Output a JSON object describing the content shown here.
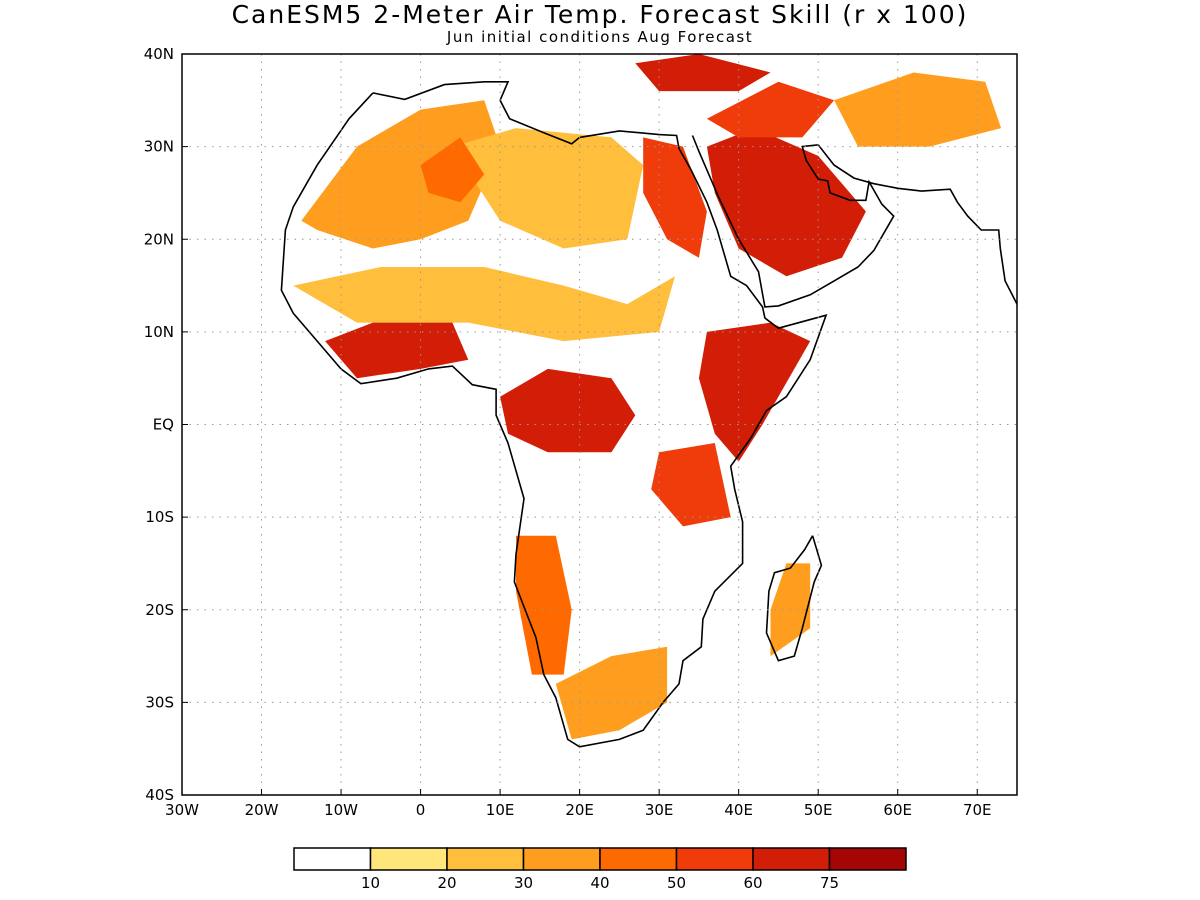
{
  "title": "CanESM5 2-Meter Air Temp. Forecast Skill (r x 100)",
  "subtitle": "Jun initial conditions  Aug Forecast",
  "map": {
    "lon_range": [
      -30,
      75
    ],
    "lat_range": [
      -40,
      40
    ],
    "lon_ticks": [
      {
        "value": -30,
        "label": "30W"
      },
      {
        "value": -20,
        "label": "20W"
      },
      {
        "value": -10,
        "label": "10W"
      },
      {
        "value": 0,
        "label": "0"
      },
      {
        "value": 10,
        "label": "10E"
      },
      {
        "value": 20,
        "label": "20E"
      },
      {
        "value": 30,
        "label": "30E"
      },
      {
        "value": 40,
        "label": "40E"
      },
      {
        "value": 50,
        "label": "50E"
      },
      {
        "value": 60,
        "label": "60E"
      },
      {
        "value": 70,
        "label": "70E"
      }
    ],
    "lat_ticks": [
      {
        "value": 40,
        "label": "40N"
      },
      {
        "value": 30,
        "label": "30N"
      },
      {
        "value": 20,
        "label": "20N"
      },
      {
        "value": 10,
        "label": "10N"
      },
      {
        "value": 0,
        "label": "EQ"
      },
      {
        "value": -10,
        "label": "10S"
      },
      {
        "value": -20,
        "label": "20S"
      },
      {
        "value": -30,
        "label": "30S"
      },
      {
        "value": -40,
        "label": "40S"
      }
    ],
    "grid": "dotted",
    "skill_regions": [
      {
        "name": "north-africa-west",
        "level": 3,
        "lonlat": [
          [
            -15,
            22
          ],
          [
            -8,
            30
          ],
          [
            0,
            34
          ],
          [
            8,
            35
          ],
          [
            10,
            30
          ],
          [
            6,
            22
          ],
          [
            0,
            20
          ],
          [
            -6,
            19
          ],
          [
            -13,
            21
          ]
        ]
      },
      {
        "name": "sahara-central",
        "level": 2,
        "lonlat": [
          [
            4,
            30
          ],
          [
            12,
            32
          ],
          [
            24,
            31
          ],
          [
            28,
            28
          ],
          [
            26,
            20
          ],
          [
            18,
            19
          ],
          [
            10,
            22
          ]
        ]
      },
      {
        "name": "libya-core",
        "level": 4,
        "lonlat": [
          [
            0,
            28
          ],
          [
            5,
            31
          ],
          [
            8,
            27
          ],
          [
            5,
            24
          ],
          [
            1,
            25
          ]
        ]
      },
      {
        "name": "egypt-sudan",
        "level": 5,
        "lonlat": [
          [
            28,
            31
          ],
          [
            33,
            30
          ],
          [
            36,
            23
          ],
          [
            35,
            18
          ],
          [
            31,
            20
          ],
          [
            28,
            25
          ]
        ]
      },
      {
        "name": "arabia",
        "level": 6,
        "lonlat": [
          [
            36,
            30
          ],
          [
            42,
            32
          ],
          [
            50,
            29
          ],
          [
            56,
            23
          ],
          [
            53,
            18
          ],
          [
            46,
            16
          ],
          [
            40,
            19
          ],
          [
            37,
            25
          ]
        ]
      },
      {
        "name": "middle-east-north",
        "level": 5,
        "lonlat": [
          [
            36,
            33
          ],
          [
            45,
            37
          ],
          [
            52,
            35
          ],
          [
            48,
            31
          ],
          [
            40,
            31
          ]
        ]
      },
      {
        "name": "mediterranean-north",
        "level": 6,
        "lonlat": [
          [
            27,
            39
          ],
          [
            35,
            40
          ],
          [
            44,
            38
          ],
          [
            40,
            36
          ],
          [
            30,
            36
          ]
        ]
      },
      {
        "name": "iran",
        "level": 3,
        "lonlat": [
          [
            52,
            35
          ],
          [
            62,
            38
          ],
          [
            71,
            37
          ],
          [
            73,
            32
          ],
          [
            64,
            30
          ],
          [
            55,
            30
          ]
        ]
      },
      {
        "name": "sahel",
        "level": 2,
        "lonlat": [
          [
            -16,
            15
          ],
          [
            -5,
            17
          ],
          [
            8,
            17
          ],
          [
            18,
            15
          ],
          [
            26,
            13
          ],
          [
            32,
            16
          ],
          [
            30,
            10
          ],
          [
            18,
            9
          ],
          [
            6,
            11
          ],
          [
            -8,
            11
          ]
        ]
      },
      {
        "name": "guinea-coast",
        "level": 6,
        "lonlat": [
          [
            -12,
            9
          ],
          [
            -6,
            11
          ],
          [
            4,
            11
          ],
          [
            6,
            7
          ],
          [
            0,
            6
          ],
          [
            -8,
            5
          ]
        ]
      },
      {
        "name": "congo",
        "level": 6,
        "lonlat": [
          [
            10,
            3
          ],
          [
            16,
            6
          ],
          [
            24,
            5
          ],
          [
            27,
            1
          ],
          [
            24,
            -3
          ],
          [
            16,
            -3
          ],
          [
            11,
            -1
          ]
        ]
      },
      {
        "name": "east-africa",
        "level": 6,
        "lonlat": [
          [
            36,
            10
          ],
          [
            44,
            11
          ],
          [
            49,
            9
          ],
          [
            43,
            0
          ],
          [
            40,
            -4
          ],
          [
            37,
            -1
          ],
          [
            35,
            5
          ]
        ]
      },
      {
        "name": "tanzania",
        "level": 5,
        "lonlat": [
          [
            30,
            -3
          ],
          [
            37,
            -2
          ],
          [
            39,
            -10
          ],
          [
            33,
            -11
          ],
          [
            29,
            -7
          ]
        ]
      },
      {
        "name": "angola-namibia",
        "level": 4,
        "lonlat": [
          [
            12,
            -12
          ],
          [
            17,
            -12
          ],
          [
            19,
            -20
          ],
          [
            18,
            -27
          ],
          [
            14,
            -27
          ],
          [
            12,
            -18
          ]
        ]
      },
      {
        "name": "south-africa",
        "level": 3,
        "lonlat": [
          [
            17,
            -28
          ],
          [
            24,
            -25
          ],
          [
            31,
            -24
          ],
          [
            31,
            -30
          ],
          [
            25,
            -33
          ],
          [
            19,
            -34
          ]
        ]
      },
      {
        "name": "madagascar",
        "level": 3,
        "lonlat": [
          [
            46,
            -15
          ],
          [
            49,
            -15
          ],
          [
            49,
            -22
          ],
          [
            44,
            -25
          ],
          [
            44,
            -20
          ]
        ]
      }
    ],
    "coast_lonlat": [
      [
        -6,
        35.8
      ],
      [
        -9,
        33
      ],
      [
        -13,
        28
      ],
      [
        -16,
        23.5
      ],
      [
        -17,
        21
      ],
      [
        -17.5,
        14.5
      ],
      [
        -16,
        12
      ],
      [
        -13,
        9
      ],
      [
        -10,
        6
      ],
      [
        -7.5,
        4.4
      ],
      [
        -3,
        5
      ],
      [
        1,
        6
      ],
      [
        4,
        6.3
      ],
      [
        6.5,
        4.3
      ],
      [
        9.5,
        3.8
      ],
      [
        9.5,
        1
      ],
      [
        11,
        -2
      ],
      [
        12,
        -5
      ],
      [
        13,
        -8
      ],
      [
        12,
        -14
      ],
      [
        11.8,
        -17
      ],
      [
        14.5,
        -23
      ],
      [
        15.5,
        -27
      ],
      [
        17,
        -29.5
      ],
      [
        18.5,
        -34
      ],
      [
        20,
        -34.8
      ],
      [
        25,
        -34
      ],
      [
        28,
        -33
      ],
      [
        30.5,
        -30
      ],
      [
        32.5,
        -28
      ],
      [
        33,
        -25.5
      ],
      [
        35.3,
        -24
      ],
      [
        35.5,
        -21
      ],
      [
        37,
        -18
      ],
      [
        40.5,
        -15
      ],
      [
        40.5,
        -10.5
      ],
      [
        39.5,
        -7
      ],
      [
        39,
        -4.5
      ],
      [
        41.5,
        -1.5
      ],
      [
        43.5,
        1.5
      ],
      [
        46,
        3
      ],
      [
        49,
        7
      ],
      [
        51,
        11.8
      ],
      [
        45,
        10.4
      ],
      [
        43.3,
        11.5
      ],
      [
        43,
        12.7
      ],
      [
        41,
        15
      ],
      [
        39,
        16
      ],
      [
        37.3,
        21
      ],
      [
        36,
        24
      ],
      [
        34,
        27.5
      ],
      [
        32.5,
        29.8
      ],
      [
        32.2,
        31.2
      ],
      [
        30,
        31.3
      ],
      [
        25,
        31.7
      ],
      [
        20,
        31
      ],
      [
        19,
        30.3
      ],
      [
        15.5,
        31.5
      ],
      [
        11.2,
        33
      ],
      [
        10,
        35
      ],
      [
        11,
        37
      ],
      [
        8,
        37
      ],
      [
        3,
        36.7
      ],
      [
        -2,
        35.1
      ],
      [
        -6,
        35.8
      ]
    ],
    "arabia_lonlat": [
      [
        34.2,
        31.2
      ],
      [
        35,
        29.5
      ],
      [
        37.5,
        24.5
      ],
      [
        40,
        20
      ],
      [
        42.5,
        16.5
      ],
      [
        43.3,
        12.7
      ],
      [
        45,
        12.8
      ],
      [
        49,
        14
      ],
      [
        52,
        15.5
      ],
      [
        55,
        17
      ],
      [
        57,
        18.8
      ],
      [
        59.5,
        22.5
      ],
      [
        58,
        23.8
      ],
      [
        56.4,
        26.2
      ],
      [
        56,
        24.2
      ],
      [
        54,
        24.2
      ],
      [
        51.5,
        25
      ],
      [
        51.2,
        26.3
      ],
      [
        50,
        26.5
      ],
      [
        48.5,
        28.5
      ],
      [
        48,
        30
      ],
      [
        50,
        30.2
      ],
      [
        52,
        28
      ],
      [
        54.5,
        26.6
      ],
      [
        57,
        26
      ],
      [
        60,
        25.5
      ],
      [
        63,
        25.2
      ],
      [
        66.6,
        25.4
      ],
      [
        67.5,
        24
      ],
      [
        68.8,
        22.5
      ],
      [
        70.5,
        21
      ],
      [
        72.7,
        21
      ],
      [
        72.9,
        19
      ],
      [
        73.5,
        15.5
      ],
      [
        75,
        13
      ]
    ],
    "madagascar_lonlat": [
      [
        49.3,
        -12
      ],
      [
        50.4,
        -15.2
      ],
      [
        49.5,
        -17
      ],
      [
        48,
        -22
      ],
      [
        47,
        -25
      ],
      [
        45,
        -25.5
      ],
      [
        43.5,
        -22.5
      ],
      [
        43.8,
        -18
      ],
      [
        44.5,
        -16
      ],
      [
        46.5,
        -15.5
      ],
      [
        48.3,
        -13.5
      ],
      [
        49.3,
        -12
      ]
    ],
    "colorbar": {
      "colors": [
        "#ffffff",
        "#ffe67a",
        "#ffbe3c",
        "#ff9e1e",
        "#ff6a00",
        "#f03c0a",
        "#d21e06",
        "#a50505"
      ],
      "labels": [
        "10",
        "20",
        "30",
        "40",
        "50",
        "60",
        "75"
      ]
    }
  }
}
